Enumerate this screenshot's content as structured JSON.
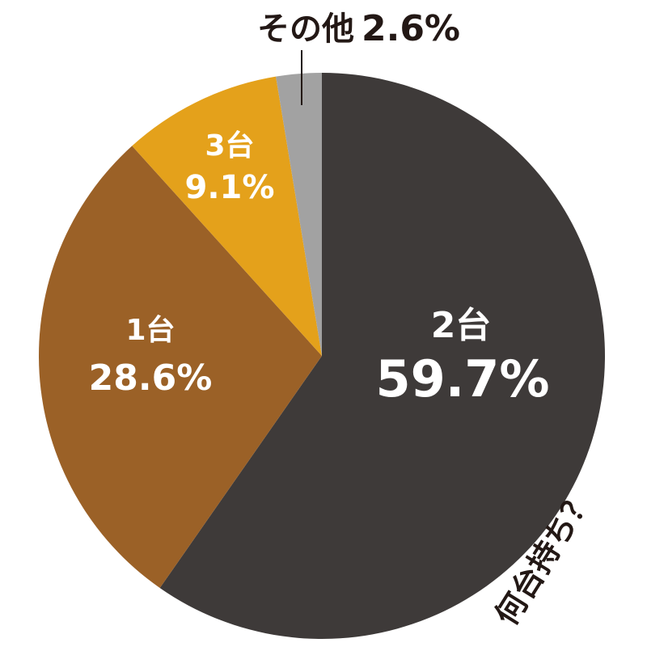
{
  "chart_data": {
    "type": "pie",
    "categories": [
      "2台",
      "1台",
      "3台",
      "その他"
    ],
    "values": [
      59.7,
      28.6,
      9.1,
      2.6
    ],
    "value_labels": [
      "59.7%",
      "28.6%",
      "9.1%",
      "2.6%"
    ],
    "colors": [
      "#3e3a39",
      "#9b6127",
      "#e4a11b",
      "#a2a2a2"
    ],
    "annotation": "何台持ち？"
  }
}
